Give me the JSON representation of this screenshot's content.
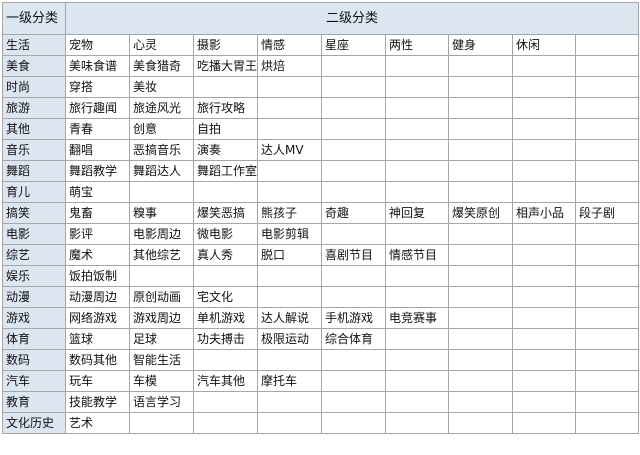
{
  "header": {
    "col1": "一级分类",
    "col2": "二级分类"
  },
  "rows": [
    {
      "name": "生活",
      "subs": [
        "宠物",
        "心灵",
        "摄影",
        "情感",
        "星座",
        "两性",
        "健身",
        "休闲",
        ""
      ]
    },
    {
      "name": "美食",
      "subs": [
        "美味食谱",
        "美食猎奇",
        "吃播大胃王",
        "烘焙",
        "",
        "",
        "",
        "",
        ""
      ]
    },
    {
      "name": "时尚",
      "subs": [
        "穿搭",
        "美妆",
        "",
        "",
        "",
        "",
        "",
        "",
        ""
      ]
    },
    {
      "name": "旅游",
      "subs": [
        "旅行趣闻",
        "旅途风光",
        "旅行攻略",
        "",
        "",
        "",
        "",
        "",
        ""
      ]
    },
    {
      "name": "其他",
      "subs": [
        "青春",
        "创意",
        "自拍",
        "",
        "",
        "",
        "",
        "",
        ""
      ]
    },
    {
      "name": "音乐",
      "subs": [
        "翻唱",
        "恶搞音乐",
        "演奏",
        "达人MV",
        "",
        "",
        "",
        "",
        ""
      ]
    },
    {
      "name": "舞蹈",
      "subs": [
        "舞蹈教学",
        "舞蹈达人",
        "舞蹈工作室",
        "",
        "",
        "",
        "",
        "",
        ""
      ]
    },
    {
      "name": "育儿",
      "subs": [
        "萌宝",
        "",
        "",
        "",
        "",
        "",
        "",
        "",
        ""
      ]
    },
    {
      "name": "搞笑",
      "subs": [
        "鬼畜",
        "糗事",
        "爆笑恶搞",
        "熊孩子",
        "奇趣",
        "神回复",
        "爆笑原创",
        "相声小品",
        "段子剧"
      ]
    },
    {
      "name": "电影",
      "subs": [
        "影评",
        "电影周边",
        "微电影",
        "电影剪辑",
        "",
        "",
        "",
        "",
        ""
      ]
    },
    {
      "name": "综艺",
      "subs": [
        "魔术",
        "其他综艺",
        "真人秀",
        "脱口",
        "喜剧节目",
        "情感节目",
        "",
        "",
        ""
      ]
    },
    {
      "name": "娱乐",
      "subs": [
        "饭拍饭制",
        "",
        "",
        "",
        "",
        "",
        "",
        "",
        ""
      ]
    },
    {
      "name": "动漫",
      "subs": [
        "动漫周边",
        "原创动画",
        "宅文化",
        "",
        "",
        "",
        "",
        "",
        ""
      ]
    },
    {
      "name": "游戏",
      "subs": [
        "网络游戏",
        "游戏周边",
        "单机游戏",
        "达人解说",
        "手机游戏",
        "电竞赛事",
        "",
        "",
        ""
      ]
    },
    {
      "name": "体育",
      "subs": [
        "篮球",
        "足球",
        "功夫搏击",
        "极限运动",
        "综合体育",
        "",
        "",
        "",
        ""
      ]
    },
    {
      "name": "数码",
      "subs": [
        "数码其他",
        "智能生活",
        "",
        "",
        "",
        "",
        "",
        "",
        ""
      ]
    },
    {
      "name": "汽车",
      "subs": [
        "玩车",
        "车模",
        "汽车其他",
        "摩托车",
        "",
        "",
        "",
        "",
        ""
      ]
    },
    {
      "name": "教育",
      "subs": [
        "技能教学",
        "语言学习",
        "",
        "",
        "",
        "",
        "",
        "",
        ""
      ]
    },
    {
      "name": "文化历史",
      "subs": [
        "艺术",
        "",
        "",
        "",
        "",
        "",
        "",
        "",
        ""
      ]
    }
  ]
}
